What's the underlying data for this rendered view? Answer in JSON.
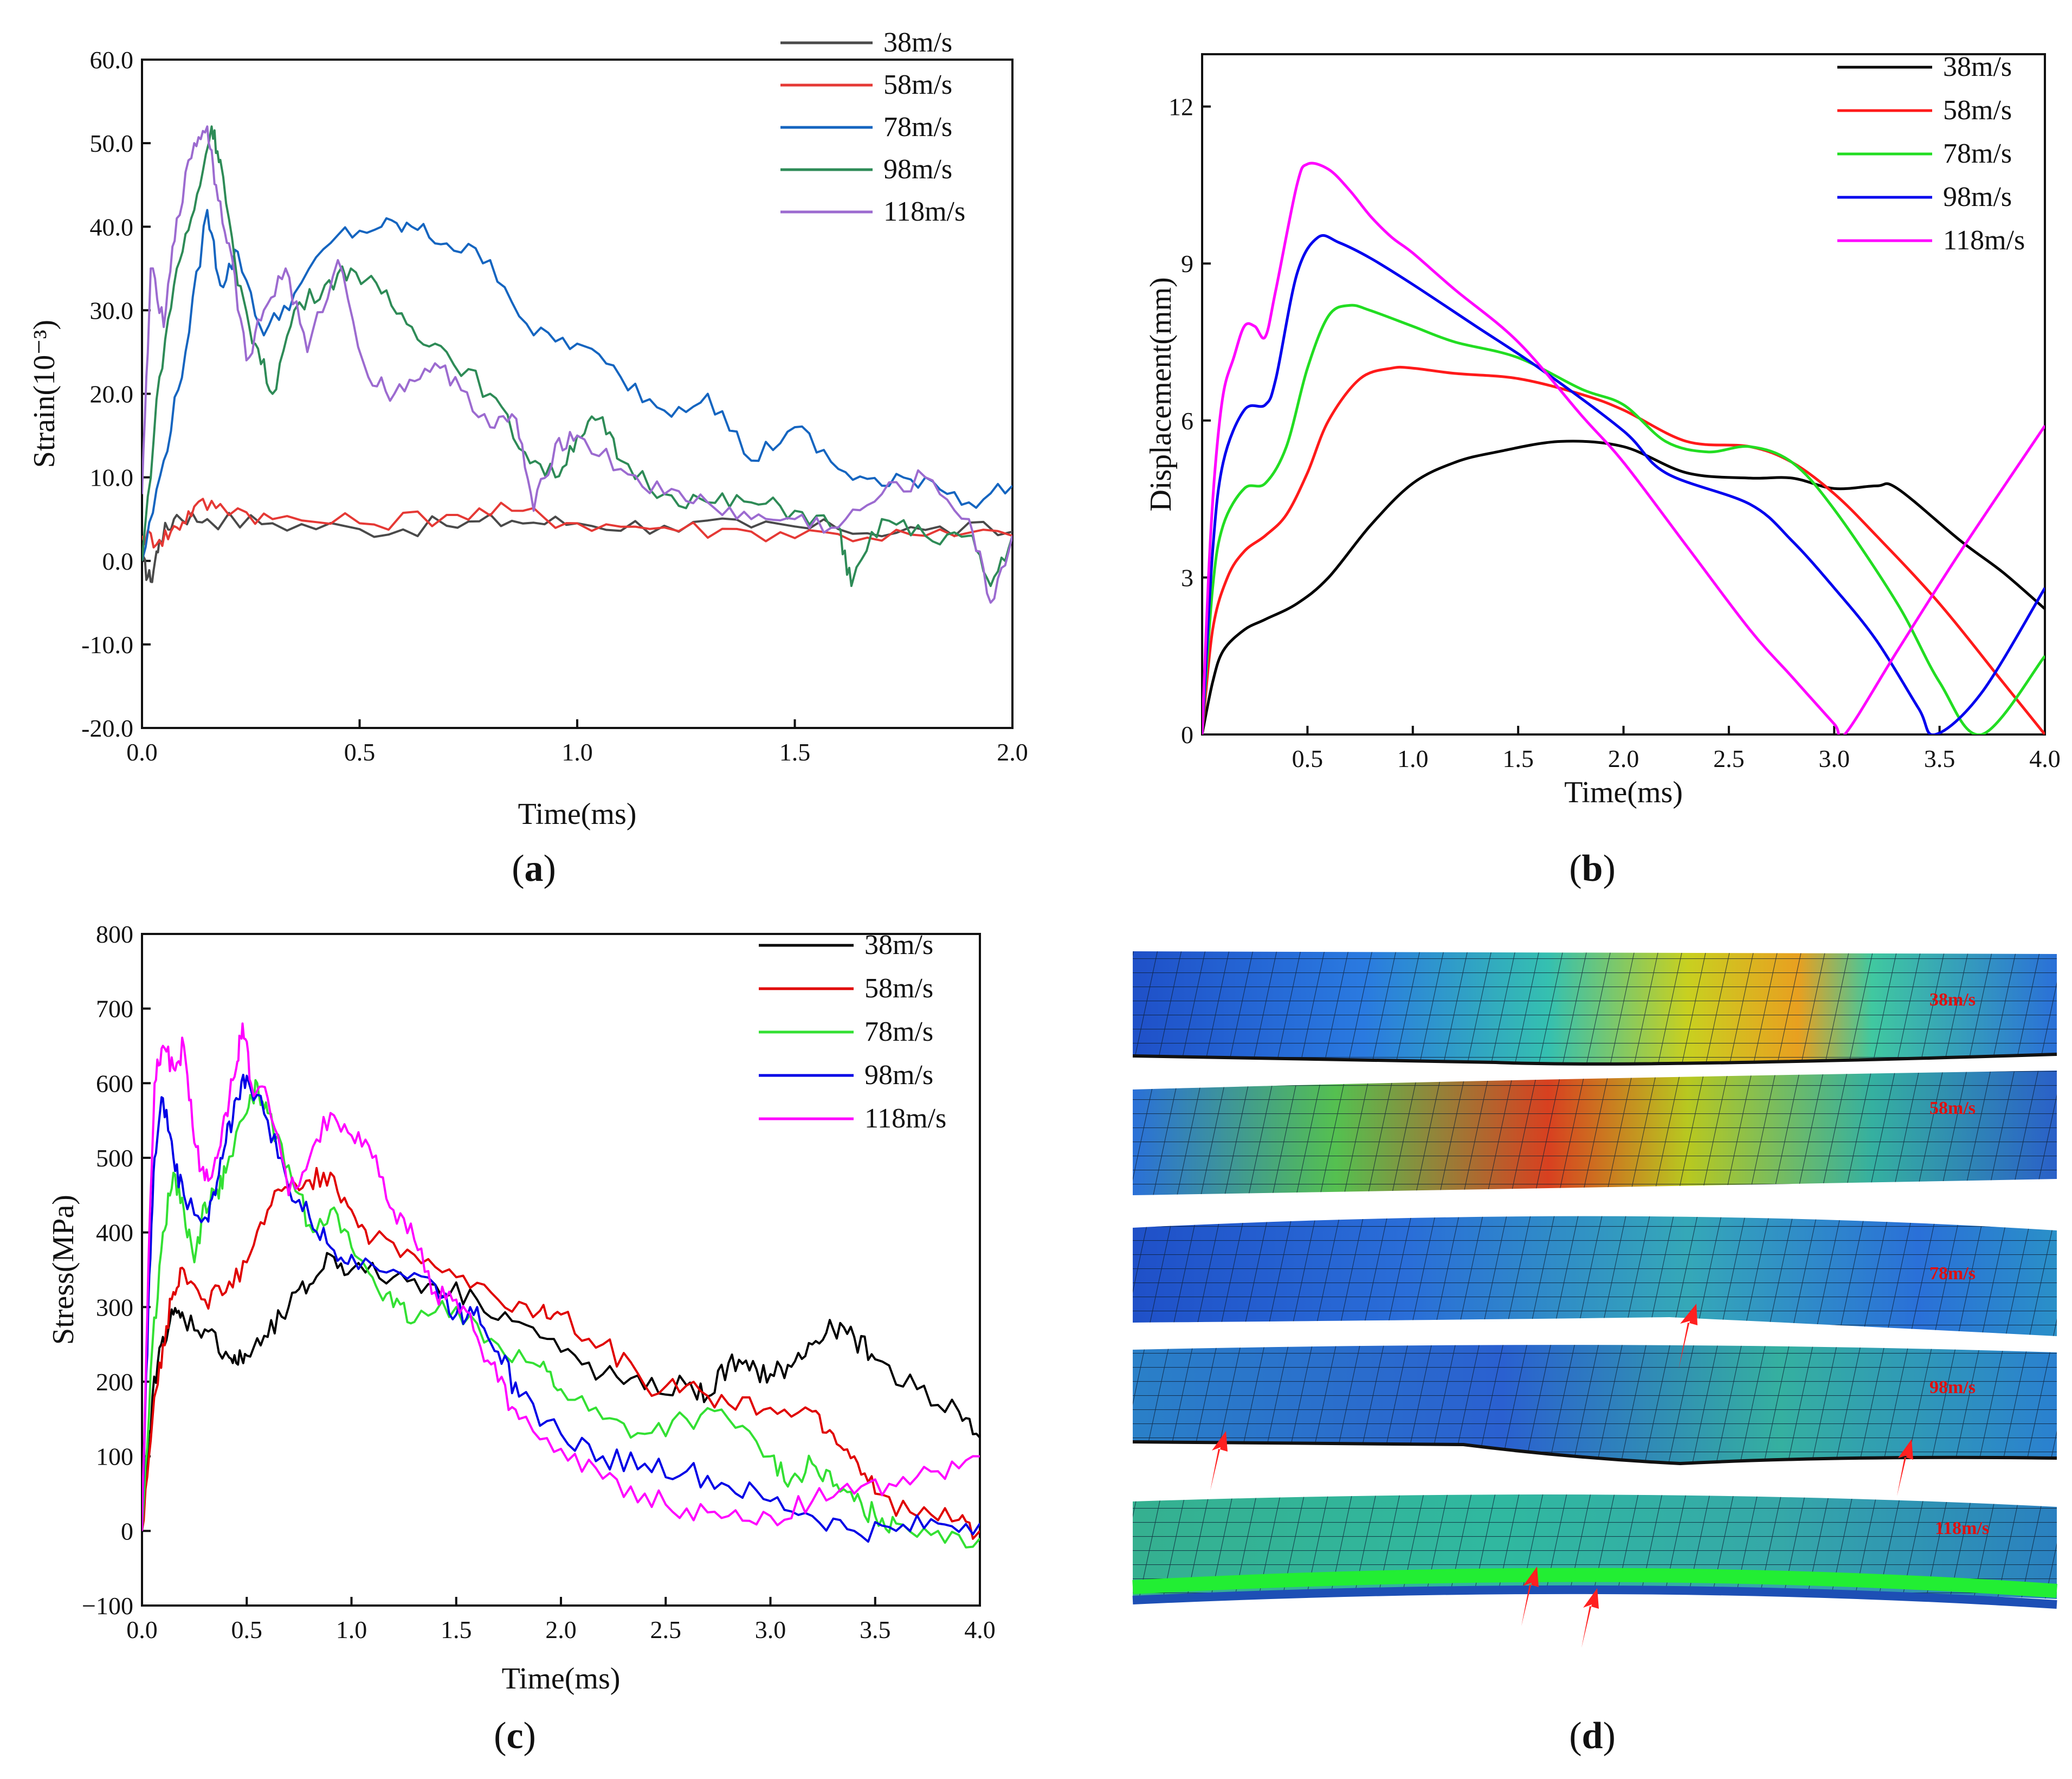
{
  "figure": {
    "panel_labels": [
      {
        "open": "(",
        "letter": "a",
        "close": ")"
      },
      {
        "open": "(",
        "letter": "b",
        "close": ")"
      },
      {
        "open": "(",
        "letter": "c",
        "close": ")"
      },
      {
        "open": "(",
        "letter": "d",
        "close": ")"
      }
    ]
  },
  "chart_data": [
    {
      "id": "a",
      "type": "line",
      "title": "",
      "xlabel": "Time(ms)",
      "ylabel": "Strain(10⁻³)",
      "xlim": [
        0,
        2.0
      ],
      "ylim": [
        -20,
        60
      ],
      "xticks": [
        "0.0",
        "0.5",
        "1.0",
        "1.5",
        "2.0"
      ],
      "xtick_values": [
        0,
        0.5,
        1.0,
        1.5,
        2.0
      ],
      "yticks": [
        "-20.0",
        "-10.0",
        "0.0",
        "10.0",
        "20.0",
        "30.0",
        "40.0",
        "50.0",
        "60.0"
      ],
      "ytick_values": [
        -20,
        -10,
        0,
        10,
        20,
        30,
        40,
        50,
        60
      ],
      "legend_position": "top-right",
      "noise": 0.4,
      "series": [
        {
          "name": "38m/s",
          "color": "#4a4a4a",
          "x": [
            0,
            0.02,
            0.04,
            0.08,
            0.15,
            0.3,
            0.5,
            0.7,
            0.85,
            1.0,
            1.2,
            1.4,
            1.6,
            1.8,
            2.0
          ],
          "y": [
            0,
            -2.5,
            2.5,
            5.5,
            5,
            4.5,
            3.8,
            4.2,
            4.8,
            4.5,
            4.2,
            4.0,
            3.8,
            3.7,
            3.5
          ]
        },
        {
          "name": "58m/s",
          "color": "#e53935",
          "x": [
            0,
            0.04,
            0.08,
            0.12,
            0.18,
            0.3,
            0.5,
            0.7,
            0.85,
            1.0,
            1.2,
            1.4,
            1.6,
            1.8,
            2.0
          ],
          "y": [
            3,
            2.5,
            4.0,
            6.5,
            6.8,
            5.0,
            4.5,
            5.5,
            6.0,
            4.5,
            4.0,
            3.5,
            3.2,
            3.0,
            3.0
          ]
        },
        {
          "name": "78m/s",
          "color": "#1565c0",
          "x": [
            0,
            0.05,
            0.1,
            0.15,
            0.18,
            0.22,
            0.28,
            0.35,
            0.45,
            0.55,
            0.62,
            0.7,
            0.8,
            0.9,
            1.0,
            1.1,
            1.2,
            1.3,
            1.4,
            1.5,
            1.6,
            1.7,
            1.8,
            1.9,
            2.0
          ],
          "y": [
            0,
            12,
            25,
            42,
            33,
            37,
            27,
            32,
            39,
            40,
            40,
            38,
            36,
            27,
            26,
            22,
            18,
            20,
            12,
            16,
            11,
            9,
            10,
            7,
            9
          ]
        },
        {
          "name": "98m/s",
          "color": "#2e8b57",
          "x": [
            0,
            0.04,
            0.08,
            0.12,
            0.16,
            0.18,
            0.22,
            0.26,
            0.3,
            0.35,
            0.42,
            0.48,
            0.55,
            0.62,
            0.7,
            0.8,
            0.88,
            0.95,
            1.0,
            1.05,
            1.1,
            1.2,
            1.3,
            1.4,
            1.5,
            1.6,
            1.63,
            1.7,
            1.8,
            1.9,
            1.95,
            2.0
          ],
          "y": [
            0,
            22,
            35,
            42,
            52,
            48,
            33,
            26,
            20,
            30,
            33,
            35,
            32,
            28,
            25,
            20,
            13,
            10,
            15,
            17,
            12,
            8,
            7,
            7,
            6,
            4,
            -3,
            5,
            3,
            3,
            -3,
            3
          ]
        },
        {
          "name": "118m/s",
          "color": "#9c6bd0",
          "x": [
            0,
            0.02,
            0.05,
            0.08,
            0.12,
            0.15,
            0.17,
            0.2,
            0.24,
            0.28,
            0.33,
            0.38,
            0.45,
            0.52,
            0.58,
            0.65,
            0.72,
            0.8,
            0.86,
            0.9,
            0.95,
            1.0,
            1.1,
            1.2,
            1.3,
            1.4,
            1.5,
            1.6,
            1.7,
            1.8,
            1.9,
            1.95,
            2.0
          ],
          "y": [
            8,
            35,
            28,
            41,
            50,
            52,
            45,
            38,
            24,
            30,
            35,
            25,
            36,
            22,
            20,
            23,
            22,
            16,
            17,
            6,
            14,
            15,
            11,
            8,
            7,
            5,
            5,
            4,
            8,
            10,
            5,
            -5,
            3
          ]
        }
      ]
    },
    {
      "id": "b",
      "type": "line",
      "title": "",
      "xlabel": "Time(ms)",
      "ylabel": "Displacement(mm)",
      "xlim": [
        0,
        4.0
      ],
      "ylim": [
        0,
        13
      ],
      "xticks": [
        "0.5",
        "1.0",
        "1.5",
        "2.0",
        "2.5",
        "3.0",
        "3.5",
        "4.0"
      ],
      "xtick_values": [
        0.5,
        1.0,
        1.5,
        2.0,
        2.5,
        3.0,
        3.5,
        4.0
      ],
      "yticks": [
        "0",
        "3",
        "6",
        "9",
        "12"
      ],
      "ytick_values": [
        0,
        3,
        6,
        9,
        12
      ],
      "legend_position": "top-right",
      "noise": 0,
      "series": [
        {
          "name": "38m/s",
          "color": "#000000",
          "x": [
            0,
            0.05,
            0.1,
            0.2,
            0.3,
            0.45,
            0.6,
            0.8,
            1.0,
            1.2,
            1.4,
            1.7,
            2.0,
            2.3,
            2.6,
            2.8,
            3.0,
            3.2,
            3.3,
            3.6,
            3.8,
            4.0
          ],
          "y": [
            0,
            1.0,
            1.6,
            2.0,
            2.2,
            2.5,
            3.0,
            4.0,
            4.8,
            5.2,
            5.4,
            5.6,
            5.5,
            5.0,
            4.9,
            4.9,
            4.7,
            4.75,
            4.7,
            3.7,
            3.1,
            2.4
          ]
        },
        {
          "name": "58m/s",
          "color": "#ff1a1a",
          "x": [
            0,
            0.05,
            0.12,
            0.2,
            0.3,
            0.4,
            0.5,
            0.6,
            0.75,
            0.9,
            1.0,
            1.2,
            1.5,
            1.8,
            2.0,
            2.3,
            2.6,
            2.8,
            3.0,
            3.2,
            3.5,
            3.8,
            4.0
          ],
          "y": [
            0,
            2.0,
            3.0,
            3.5,
            3.8,
            4.2,
            5.0,
            6.0,
            6.8,
            7.0,
            7.0,
            6.9,
            6.8,
            6.5,
            6.2,
            5.6,
            5.5,
            5.2,
            4.6,
            3.8,
            2.5,
            1.0,
            0
          ]
        },
        {
          "name": "78m/s",
          "color": "#22dd22",
          "x": [
            0,
            0.05,
            0.1,
            0.2,
            0.3,
            0.4,
            0.5,
            0.6,
            0.7,
            0.8,
            1.0,
            1.2,
            1.5,
            1.8,
            2.0,
            2.2,
            2.4,
            2.6,
            2.8,
            3.0,
            3.3,
            3.5,
            3.7,
            4.0
          ],
          "y": [
            0,
            2.8,
            4.0,
            4.7,
            4.8,
            5.5,
            7.0,
            8.0,
            8.2,
            8.1,
            7.8,
            7.5,
            7.2,
            6.6,
            6.3,
            5.6,
            5.4,
            5.5,
            5.2,
            4.3,
            2.5,
            1.0,
            0,
            1.5
          ]
        },
        {
          "name": "98m/s",
          "color": "#0000ee",
          "x": [
            0,
            0.05,
            0.1,
            0.2,
            0.3,
            0.35,
            0.45,
            0.55,
            0.65,
            0.8,
            1.0,
            1.3,
            1.6,
            2.0,
            2.2,
            2.6,
            2.8,
            3.0,
            3.2,
            3.4,
            3.48,
            3.7,
            4.0
          ],
          "y": [
            0,
            3.5,
            5.2,
            6.2,
            6.3,
            6.8,
            8.8,
            9.5,
            9.4,
            9.1,
            8.6,
            7.8,
            7.0,
            5.8,
            5.0,
            4.4,
            3.7,
            2.8,
            1.8,
            0.5,
            0,
            0.8,
            2.8
          ]
        },
        {
          "name": "118m/s",
          "color": "#ff00ff",
          "x": [
            0,
            0.03,
            0.06,
            0.1,
            0.15,
            0.2,
            0.25,
            0.3,
            0.35,
            0.45,
            0.5,
            0.6,
            0.7,
            0.8,
            0.9,
            1.0,
            1.2,
            1.5,
            1.8,
            2.0,
            2.3,
            2.6,
            2.8,
            3.0,
            3.05,
            3.3,
            3.6,
            4.0
          ],
          "y": [
            0,
            3.0,
            5.0,
            6.5,
            7.2,
            7.8,
            7.8,
            7.6,
            8.5,
            10.5,
            10.9,
            10.8,
            10.4,
            9.9,
            9.5,
            9.2,
            8.5,
            7.5,
            6.1,
            5.2,
            3.6,
            2.0,
            1.1,
            0.2,
            0,
            1.6,
            3.5,
            5.9
          ]
        }
      ]
    },
    {
      "id": "c",
      "type": "line",
      "title": "",
      "xlabel": "Time(ms)",
      "ylabel": "Stress(MPa)",
      "xlim": [
        0,
        4.0
      ],
      "ylim": [
        -100,
        800
      ],
      "xticks": [
        "0.0",
        "0.5",
        "1.0",
        "1.5",
        "2.0",
        "2.5",
        "3.0",
        "3.5",
        "4.0"
      ],
      "xtick_values": [
        0,
        0.5,
        1.0,
        1.5,
        2.0,
        2.5,
        3.0,
        3.5,
        4.0
      ],
      "yticks": [
        "−100",
        "0",
        "100",
        "200",
        "300",
        "400",
        "500",
        "600",
        "700",
        "800"
      ],
      "ytick_values": [
        -100,
        0,
        100,
        200,
        300,
        400,
        500,
        600,
        700,
        800
      ],
      "legend_position": "top-right",
      "noise": 8,
      "series": [
        {
          "name": "38m/s",
          "color": "#000000",
          "x": [
            0,
            0.05,
            0.1,
            0.15,
            0.2,
            0.3,
            0.4,
            0.45,
            0.5,
            0.6,
            0.7,
            0.8,
            0.9,
            1.0,
            1.2,
            1.4,
            1.6,
            1.8,
            2.0,
            2.2,
            2.4,
            2.6,
            2.7,
            2.8,
            2.9,
            3.0,
            3.1,
            3.2,
            3.3,
            3.4,
            3.5,
            3.7,
            3.9,
            4.0
          ],
          "y": [
            0,
            180,
            260,
            290,
            285,
            270,
            240,
            225,
            235,
            260,
            300,
            330,
            370,
            350,
            340,
            330,
            310,
            280,
            240,
            210,
            190,
            195,
            180,
            225,
            215,
            210,
            220,
            250,
            270,
            260,
            230,
            190,
            160,
            125
          ]
        },
        {
          "name": "58m/s",
          "color": "#e00000",
          "x": [
            0,
            0.05,
            0.1,
            0.15,
            0.2,
            0.3,
            0.4,
            0.5,
            0.6,
            0.7,
            0.8,
            0.9,
            1.0,
            1.1,
            1.3,
            1.5,
            1.7,
            1.9,
            2.0,
            2.2,
            2.4,
            2.6,
            2.8,
            3.0,
            3.2,
            3.3,
            3.4,
            3.5,
            3.7,
            3.9,
            4.0
          ],
          "y": [
            0,
            150,
            250,
            320,
            350,
            310,
            320,
            360,
            430,
            460,
            470,
            480,
            430,
            390,
            370,
            340,
            310,
            295,
            290,
            250,
            195,
            195,
            170,
            165,
            160,
            130,
            100,
            50,
            20,
            15,
            0
          ]
        },
        {
          "name": "78m/s",
          "color": "#33e033",
          "x": [
            0,
            0.05,
            0.1,
            0.15,
            0.2,
            0.25,
            0.3,
            0.35,
            0.4,
            0.5,
            0.55,
            0.6,
            0.7,
            0.8,
            0.9,
            1.0,
            1.1,
            1.2,
            1.3,
            1.5,
            1.7,
            1.9,
            2.0,
            2.2,
            2.4,
            2.6,
            2.8,
            3.0,
            3.1,
            3.2,
            3.3,
            3.4,
            3.5,
            3.6,
            3.8,
            4.0
          ],
          "y": [
            0,
            250,
            400,
            480,
            430,
            360,
            440,
            450,
            480,
            560,
            600,
            560,
            490,
            410,
            430,
            380,
            340,
            300,
            280,
            300,
            250,
            220,
            190,
            150,
            130,
            150,
            150,
            100,
            70,
            90,
            60,
            40,
            20,
            10,
            0,
            -10
          ]
        },
        {
          "name": "98m/s",
          "color": "#0000e6",
          "x": [
            0,
            0.03,
            0.06,
            0.1,
            0.15,
            0.2,
            0.3,
            0.35,
            0.4,
            0.45,
            0.5,
            0.6,
            0.7,
            0.8,
            0.9,
            1.0,
            1.2,
            1.4,
            1.5,
            1.6,
            1.7,
            1.8,
            2.0,
            2.2,
            2.4,
            2.6,
            2.8,
            3.0,
            3.2,
            3.4,
            3.6,
            3.8,
            4.0
          ],
          "y": [
            0,
            300,
            500,
            580,
            500,
            450,
            420,
            450,
            520,
            580,
            610,
            550,
            460,
            420,
            380,
            370,
            350,
            330,
            290,
            300,
            240,
            180,
            130,
            100,
            90,
            80,
            60,
            40,
            20,
            0,
            0,
            10,
            10
          ]
        },
        {
          "name": "118m/s",
          "color": "#ff00ff",
          "x": [
            0,
            0.03,
            0.06,
            0.1,
            0.15,
            0.2,
            0.25,
            0.3,
            0.35,
            0.4,
            0.45,
            0.48,
            0.52,
            0.6,
            0.7,
            0.8,
            0.9,
            1.0,
            1.1,
            1.2,
            1.3,
            1.4,
            1.5,
            1.6,
            1.7,
            1.8,
            2.0,
            2.2,
            2.4,
            2.6,
            2.8,
            3.0,
            3.2,
            3.4,
            3.6,
            3.8,
            4.0
          ],
          "y": [
            0,
            350,
            600,
            650,
            620,
            650,
            520,
            470,
            500,
            560,
            620,
            680,
            600,
            580,
            450,
            500,
            560,
            530,
            500,
            430,
            390,
            320,
            310,
            260,
            200,
            150,
            110,
            70,
            50,
            30,
            20,
            20,
            40,
            50,
            60,
            80,
            100
          ]
        }
      ]
    }
  ],
  "panel_d": {
    "strips": [
      {
        "label": "38m/s"
      },
      {
        "label": "58m/s"
      },
      {
        "label": "78m/s"
      },
      {
        "label": "98m/s"
      },
      {
        "label": "118m/s"
      }
    ],
    "arrow_color": "#ff2020"
  }
}
